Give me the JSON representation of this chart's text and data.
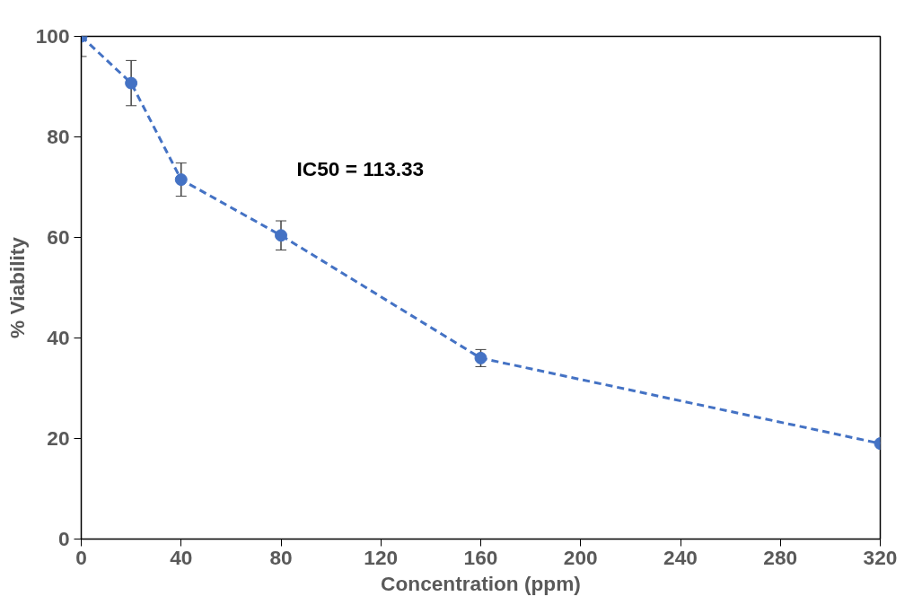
{
  "chart_data": {
    "type": "line",
    "xlabel": "Concentration (ppm)",
    "ylabel": "% Viability",
    "annotations": [
      "IC50 = 113.33"
    ],
    "x": [
      0,
      20,
      40,
      80,
      160,
      320
    ],
    "series": [
      {
        "color": "#4472c4",
        "values": [
          100,
          90.7,
          71.5,
          60.4,
          36.0,
          19.0
        ],
        "errors": [
          [
            96,
            100
          ],
          4.5,
          3.3,
          2.9,
          1.7,
          null
        ]
      }
    ],
    "xlim": [
      0,
      320
    ],
    "xticks": [
      0,
      40,
      80,
      120,
      160,
      200,
      240,
      280,
      320
    ],
    "ylim": [
      0,
      100
    ],
    "yticks": [
      0,
      20,
      40,
      60,
      80,
      100
    ],
    "grid": false,
    "marker": "circle",
    "line_style": "dashed"
  }
}
